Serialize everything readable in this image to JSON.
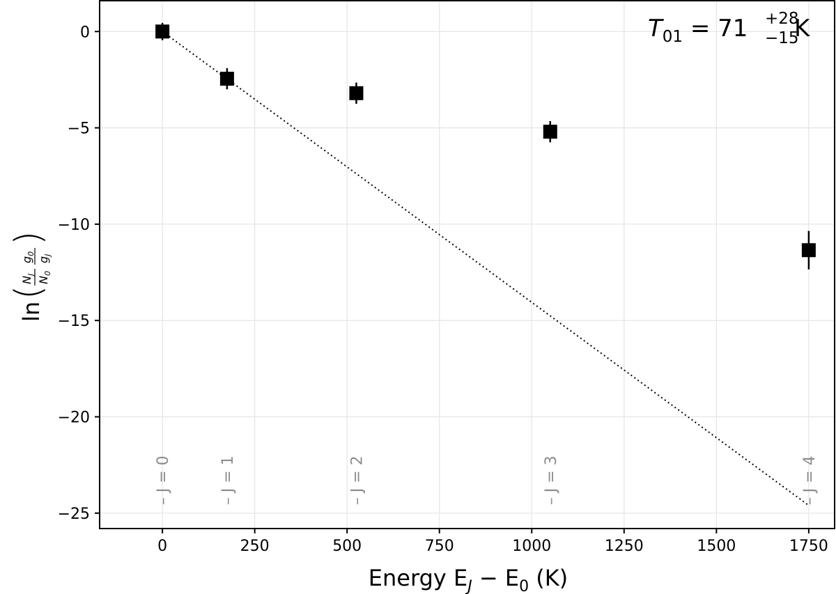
{
  "chart_data": {
    "type": "scatter",
    "xlabel": {
      "pre": "Energy E",
      "sub": "J",
      "post": " − E",
      "sub2": "0",
      "unit": " (K)"
    },
    "ylabel": {
      "fn": "ln",
      "num1": "N",
      "num1_sub": "J",
      "den1": "N",
      "den1_sub": "0",
      "num2": "g",
      "num2_sub": "0",
      "den2": "g",
      "den2_sub": "J"
    },
    "xlim": [
      -170,
      1820
    ],
    "ylim": [
      -25.8,
      1.6
    ],
    "xticks": [
      0,
      250,
      500,
      750,
      1000,
      1250,
      1500,
      1750
    ],
    "xtick_labels": [
      "0",
      "250",
      "500",
      "750",
      "1000",
      "1250",
      "1500",
      "1750"
    ],
    "yticks": [
      0,
      -5,
      -10,
      -15,
      -20,
      -25
    ],
    "ytick_labels": [
      "0",
      "−5",
      "−10",
      "−15",
      "−20",
      "−25"
    ],
    "grid": true,
    "points": [
      {
        "x": 0,
        "y": 0.0,
        "err": 0.45,
        "level": "J = 0"
      },
      {
        "x": 175,
        "y": -2.45,
        "err": 0.55,
        "level": "J = 1"
      },
      {
        "x": 525,
        "y": -3.2,
        "err": 0.55,
        "level": "J = 2"
      },
      {
        "x": 1050,
        "y": -5.2,
        "err": 0.55,
        "level": "J = 3"
      },
      {
        "x": 1750,
        "y": -11.35,
        "err": 1.0,
        "level": "J = 4"
      }
    ],
    "level_marker_y": -23.3,
    "fit_line": {
      "x": [
        0,
        1750
      ],
      "y": [
        0,
        -24.6
      ],
      "style": "dotted"
    },
    "annotation": {
      "symbol": "T",
      "sub": "01",
      "eq": " = 71",
      "sup": "+28",
      "subval": "−15",
      "unit": " K"
    }
  }
}
